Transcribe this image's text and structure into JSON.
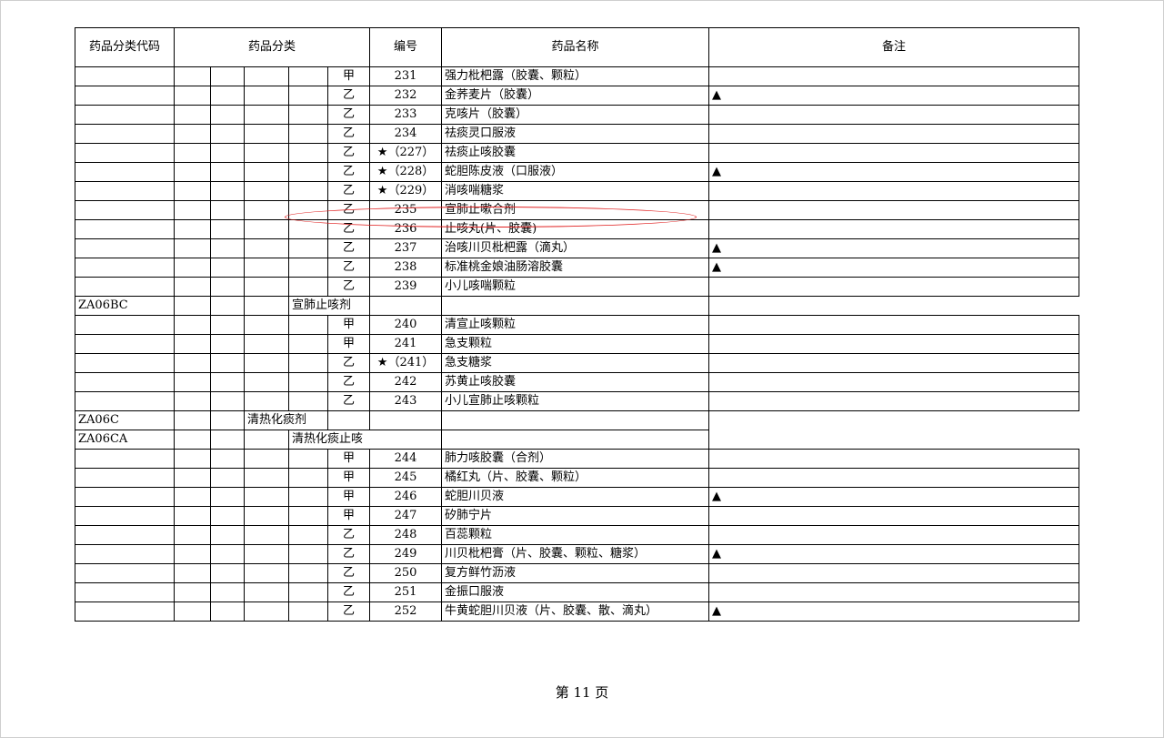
{
  "headers": {
    "code": "药品分类代码",
    "category": "药品分类",
    "number": "编号",
    "name": "药品名称",
    "note": "备注"
  },
  "rows": [
    {
      "grade": "甲",
      "number": "231",
      "name": "强力枇杷露（胶囊、颗粒）",
      "note": ""
    },
    {
      "grade": "乙",
      "number": "232",
      "name": "金荞麦片（胶囊）",
      "note": "▲"
    },
    {
      "grade": "乙",
      "number": "233",
      "name": "克咳片（胶囊）",
      "note": ""
    },
    {
      "grade": "乙",
      "number": "234",
      "name": "祛痰灵口服液",
      "note": ""
    },
    {
      "grade": "乙",
      "star": "★",
      "number": "（227）",
      "name": "祛痰止咳胶囊",
      "note": ""
    },
    {
      "grade": "乙",
      "star": "★",
      "number": "（228）",
      "name": "蛇胆陈皮液（口服液）",
      "note": "▲"
    },
    {
      "grade": "乙",
      "star": "★",
      "number": "（229）",
      "name": "消咳喘糖浆",
      "note": ""
    },
    {
      "grade": "乙",
      "number": "235",
      "name": "宣肺止嗽合剂",
      "note": "",
      "highlighted": true
    },
    {
      "grade": "乙",
      "number": "236",
      "name": "止咳丸(片、胶囊)",
      "note": ""
    },
    {
      "grade": "乙",
      "number": "237",
      "name": "治咳川贝枇杷露（滴丸）",
      "note": "▲"
    },
    {
      "grade": "乙",
      "number": "238",
      "name": "标准桃金娘油肠溶胶囊",
      "note": "▲"
    },
    {
      "grade": "乙",
      "number": "239",
      "name": "小儿咳喘颗粒",
      "note": ""
    },
    {
      "category": true,
      "level": 5,
      "span": 2,
      "code": "ZA06BC",
      "label": "宣肺止咳剂"
    },
    {
      "grade": "甲",
      "number": "240",
      "name": "清宣止咳颗粒",
      "note": ""
    },
    {
      "grade": "甲",
      "number": "241",
      "name": "急支颗粒",
      "note": ""
    },
    {
      "grade": "乙",
      "star": "★",
      "number": "（241）",
      "name": "急支糖浆",
      "note": ""
    },
    {
      "grade": "乙",
      "number": "242",
      "name": "苏黄止咳胶囊",
      "note": ""
    },
    {
      "grade": "乙",
      "number": "243",
      "name": "小儿宣肺止咳颗粒",
      "note": ""
    },
    {
      "category": true,
      "level": 4,
      "span": 2,
      "code": "ZA06C",
      "label": "清热化痰剂"
    },
    {
      "category": true,
      "level": 5,
      "span": 3,
      "code": "ZA06CA",
      "label": "清热化痰止咳"
    },
    {
      "grade": "甲",
      "number": "244",
      "name": "肺力咳胶囊（合剂）",
      "note": ""
    },
    {
      "grade": "甲",
      "number": "245",
      "name": "橘红丸（片、胶囊、颗粒）",
      "note": ""
    },
    {
      "grade": "甲",
      "number": "246",
      "name": "蛇胆川贝液",
      "note": "▲"
    },
    {
      "grade": "甲",
      "number": "247",
      "name": "矽肺宁片",
      "note": ""
    },
    {
      "grade": "乙",
      "number": "248",
      "name": "百蕊颗粒",
      "note": ""
    },
    {
      "grade": "乙",
      "number": "249",
      "name": "川贝枇杷膏（片、胶囊、颗粒、糖浆）",
      "note": "▲"
    },
    {
      "grade": "乙",
      "number": "250",
      "name": "复方鲜竹沥液",
      "note": ""
    },
    {
      "grade": "乙",
      "number": "251",
      "name": "金振口服液",
      "note": ""
    },
    {
      "grade": "乙",
      "number": "252",
      "name": "牛黄蛇胆川贝液（片、胶囊、散、滴丸）",
      "note": "▲"
    }
  ],
  "footer": {
    "page": "第 11 页"
  },
  "colors": {
    "highlight_ellipse": "#e02020"
  }
}
